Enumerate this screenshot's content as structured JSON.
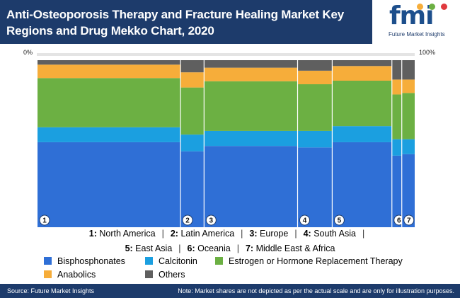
{
  "title": "Anti-Osteoporosis Therapy and Fracture Healing Market Key Regions and Drug Mekko Chart, 2020",
  "logo": {
    "letters": "fmi",
    "tagline": "Future Market Insights"
  },
  "scale": {
    "min_label": "0%",
    "max_label": "100%"
  },
  "colors": {
    "header": "#1d3b6b",
    "Bisphosphonates": "#2f6fd6",
    "Calcitonin": "#1b9fe0",
    "Estrogen or Hormone Replacement Therapy": "#6cb043",
    "Anabolics": "#f6ad3a",
    "Others": "#5f5f5f"
  },
  "chart_data": {
    "type": "mekko",
    "series_order": [
      "Bisphosphonates",
      "Calcitonin",
      "Estrogen or Hormone Replacement Therapy",
      "Anabolics",
      "Others"
    ],
    "regions": [
      {
        "id": "1",
        "name": "North America",
        "width_share": 37.6,
        "values": [
          57,
          10,
          33,
          9,
          3
        ]
      },
      {
        "id": "2",
        "name": "Latin America",
        "width_share": 6.2,
        "values": [
          50,
          11,
          31,
          10,
          8
        ]
      },
      {
        "id": "3",
        "name": "Europe",
        "width_share": 24.6,
        "values": [
          54,
          10,
          33,
          9,
          5
        ]
      },
      {
        "id": "4",
        "name": "South Asia",
        "width_share": 9.1,
        "values": [
          53,
          11,
          31,
          9,
          7
        ]
      },
      {
        "id": "5",
        "name": "East Asia",
        "width_share": 15.7,
        "values": [
          58,
          11,
          31,
          10,
          4
        ]
      },
      {
        "id": "6",
        "name": "Oceania",
        "width_share": 2.6,
        "values": [
          48,
          11,
          30,
          10,
          13
        ]
      },
      {
        "id": "7",
        "name": "Middle East & Africa",
        "width_share": 3.4,
        "values": [
          49,
          10,
          31,
          9,
          13
        ]
      }
    ]
  },
  "legend": {
    "regions_line1": [
      {
        "num": "1:",
        "name": "North America"
      },
      {
        "num": "2:",
        "name": "Latin America"
      },
      {
        "num": "3:",
        "name": "Europe"
      },
      {
        "num": "4:",
        "name": "South Asia"
      }
    ],
    "regions_line2": [
      {
        "num": "5:",
        "name": "East Asia"
      },
      {
        "num": "6:",
        "name": "Oceania"
      },
      {
        "num": "7:",
        "name": "Middle East & Africa"
      }
    ],
    "series": [
      "Bisphosphonates",
      "Calcitonin",
      "Estrogen or Hormone Replacement Therapy",
      "Anabolics",
      "Others"
    ]
  },
  "footer": {
    "source": "Source: Future Market Insights",
    "note": "Note: Market shares are not depicted as per the actual scale and are only for illustration purposes."
  }
}
